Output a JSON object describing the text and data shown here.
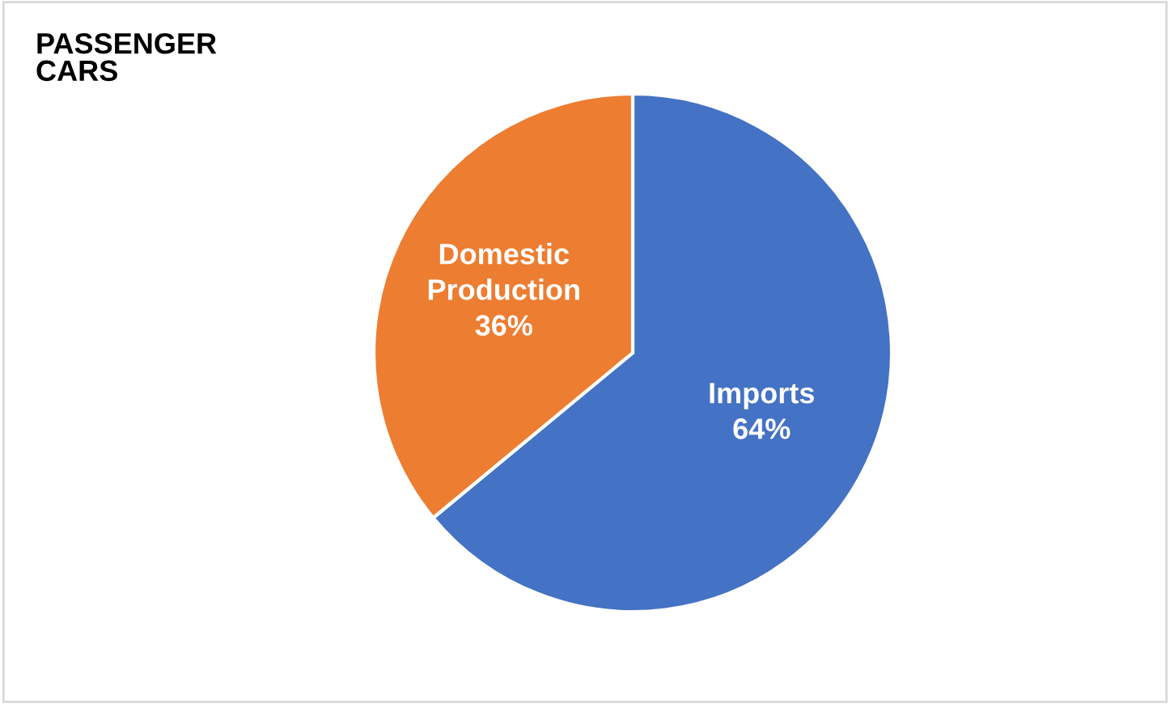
{
  "chart_data": {
    "type": "pie",
    "title": "PASSENGER\nCARS",
    "categories": [
      "Imports",
      "Domestic Production"
    ],
    "values": [
      64,
      36
    ],
    "value_labels": [
      "64%",
      "36%"
    ],
    "colors": [
      "#4472c4",
      "#ed7d31"
    ]
  }
}
